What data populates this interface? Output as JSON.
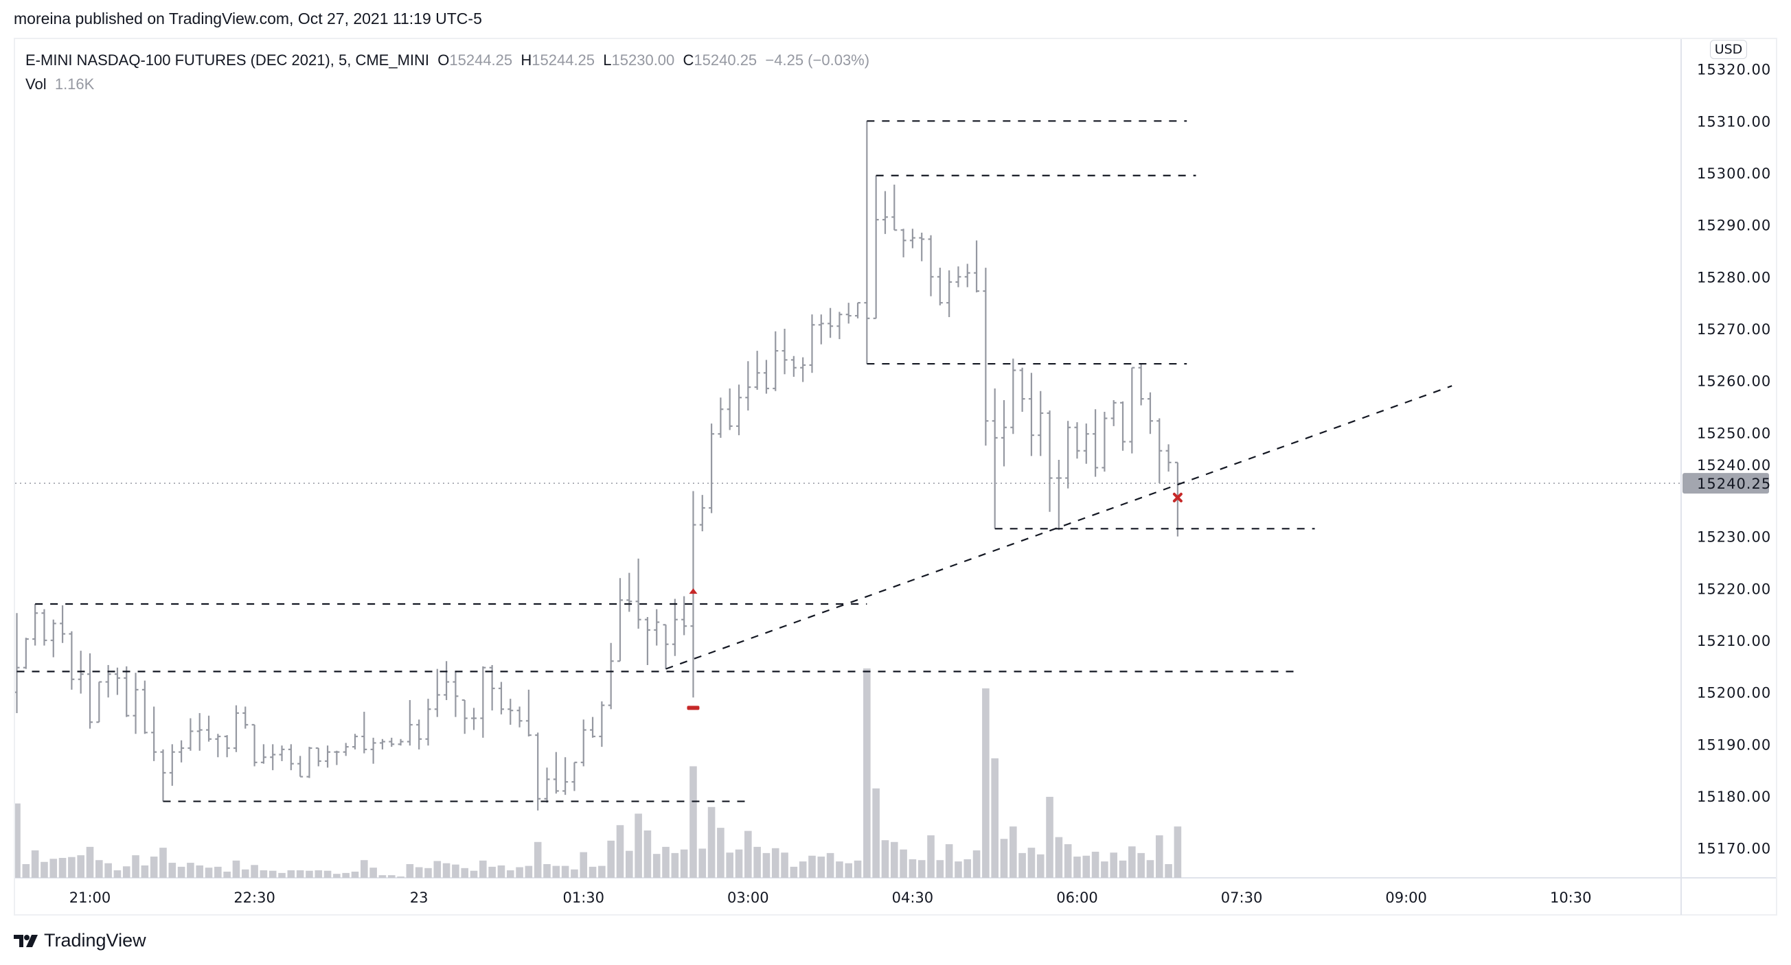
{
  "header": {
    "published": "moreina published on TradingView.com, Oct 27, 2021 11:19 UTC-5"
  },
  "legend": {
    "symbol": "E-MINI NASDAQ-100 FUTURES (DEC 2021), 5, CME_MINI",
    "o_label": "O",
    "o_value": "15244.25",
    "h_label": "H",
    "h_value": "15244.25",
    "l_label": "L",
    "l_value": "15230.00",
    "c_label": "C",
    "c_value": "15240.25",
    "change": "−4.25 (−0.03%)",
    "vol_label": "Vol",
    "vol_value": "1.16K"
  },
  "currency_badge": "USD",
  "current_price_label": "15240.25",
  "footer": {
    "logo_text": "TradingView"
  },
  "colors": {
    "bar": "#9598a1",
    "volume": "#c9cad0",
    "drawing": "#131722",
    "marker": "#c62828",
    "price_tag": "#a3a6af"
  },
  "chart_data": {
    "type": "ohlc",
    "interval_minutes": 5,
    "first_bar_time": "20:20",
    "ylim": [
      15164,
      15326
    ],
    "y_ticks": [
      "15320.00",
      "15310.00",
      "15300.00",
      "15290.00",
      "15280.00",
      "15270.00",
      "15260.00",
      "15250.00",
      "15240.00",
      "15230.00",
      "15220.00",
      "15210.00",
      "15200.00",
      "15190.00",
      "15180.00",
      "15170.00"
    ],
    "x_ticks": [
      {
        "label": "21:00",
        "time": "21:00"
      },
      {
        "label": "22:30",
        "time": "22:30"
      },
      {
        "label": "23",
        "time": "00:00"
      },
      {
        "label": "01:30",
        "time": "01:30"
      },
      {
        "label": "03:00",
        "time": "03:00"
      },
      {
        "label": "04:30",
        "time": "04:30"
      },
      {
        "label": "06:00",
        "time": "06:00"
      },
      {
        "label": "07:30",
        "time": "07:30"
      },
      {
        "label": "09:00",
        "time": "09:00"
      },
      {
        "label": "10:30",
        "time": "10:30"
      }
    ],
    "x_end_time": "11:40",
    "last_price": 15240.25,
    "ohlc": [
      [
        15200,
        15215.25,
        15196,
        15204.75
      ],
      [
        15204.75,
        15210.5,
        15204.5,
        15210.25
      ],
      [
        15210.25,
        15217,
        15209,
        15215.25
      ],
      [
        15215.25,
        15216,
        15209,
        15210
      ],
      [
        15210,
        15214,
        15206.75,
        15213.25
      ],
      [
        15213.25,
        15216.75,
        15209.5,
        15211.25
      ],
      [
        15211.25,
        15211.75,
        15200.5,
        15202.5
      ],
      [
        15202.5,
        15208,
        15199.75,
        15203.5
      ],
      [
        15203.5,
        15207.5,
        15193,
        15194.25
      ],
      [
        15194.25,
        15202,
        15194.25,
        15202
      ],
      [
        15202,
        15205.25,
        15199,
        15203.5
      ],
      [
        15203.5,
        15204.75,
        15199.5,
        15202.75
      ],
      [
        15202.75,
        15205,
        15195.25,
        15195.5
      ],
      [
        15195.5,
        15203.75,
        15192,
        15200.5
      ],
      [
        15200.5,
        15202.25,
        15192,
        15192.25
      ],
      [
        15192.25,
        15197.25,
        15186.75,
        15188.5
      ],
      [
        15188.5,
        15189,
        15179,
        15184.5
      ],
      [
        15184.5,
        15190,
        15182,
        15188.5
      ],
      [
        15188.5,
        15190.75,
        15186.5,
        15189.25
      ],
      [
        15189.25,
        15195,
        15188.75,
        15192.5
      ],
      [
        15192.5,
        15196,
        15188.75,
        15192.75
      ],
      [
        15192.75,
        15195.5,
        15190.5,
        15191
      ],
      [
        15191,
        15192,
        15187.5,
        15191.5
      ],
      [
        15191.5,
        15191.75,
        15187.5,
        15189.25
      ],
      [
        15189.25,
        15197.5,
        15188.5,
        15196
      ],
      [
        15196,
        15197.25,
        15193,
        15193.75
      ],
      [
        15193.75,
        15193.75,
        15185.75,
        15186.5
      ],
      [
        15186.5,
        15190,
        15186.25,
        15187.5
      ],
      [
        15187.5,
        15190,
        15185,
        15188
      ],
      [
        15188,
        15189.75,
        15186.75,
        15189
      ],
      [
        15189,
        15190,
        15185,
        15186.25
      ],
      [
        15186.25,
        15187.75,
        15183.75,
        15183.75
      ],
      [
        15183.75,
        15189.5,
        15183.5,
        15189.25
      ],
      [
        15189.25,
        15189.25,
        15185.75,
        15186.75
      ],
      [
        15186.75,
        15189.75,
        15185.5,
        15188.5
      ],
      [
        15188.5,
        15188.75,
        15186,
        15188.5
      ],
      [
        15188.5,
        15190.25,
        15187.75,
        15189.5
      ],
      [
        15189.5,
        15192,
        15189,
        15191.5
      ],
      [
        15191.5,
        15196.25,
        15188.25,
        15189
      ],
      [
        15189,
        15191.25,
        15186.25,
        15190.25
      ],
      [
        15190.25,
        15191,
        15189,
        15190.5
      ],
      [
        15190.5,
        15191.25,
        15189.5,
        15190
      ],
      [
        15190,
        15191,
        15189.75,
        15190.5
      ],
      [
        15190.5,
        15198.5,
        15189.75,
        15193.75
      ],
      [
        15193.75,
        15194.75,
        15189,
        15191
      ],
      [
        15191,
        15198.75,
        15189.75,
        15196.75
      ],
      [
        15196.75,
        15204.5,
        15195.25,
        15199.5
      ],
      [
        15199.5,
        15206,
        15198.5,
        15202
      ],
      [
        15202,
        15204,
        15195.25,
        15199.25
      ],
      [
        15198.5,
        15198.5,
        15192,
        15195
      ],
      [
        15195,
        15197,
        15192.75,
        15195
      ],
      [
        15195,
        15205,
        15191.25,
        15204.75
      ],
      [
        15204.75,
        15205.25,
        15196.5,
        15200.75
      ],
      [
        15200.75,
        15202,
        15195.75,
        15196.75
      ],
      [
        15196.75,
        15198.75,
        15193.75,
        15196.5
      ],
      [
        15196.5,
        15197.25,
        15193.25,
        15194.5
      ],
      [
        15194.5,
        15200.5,
        15191.5,
        15191.75
      ],
      [
        15191.75,
        15192.25,
        15177.25,
        15179.5
      ],
      [
        15179.5,
        15185.5,
        15178.75,
        15183.25
      ],
      [
        15183.25,
        15188.5,
        15180.5,
        15181
      ],
      [
        15181,
        15187.5,
        15180.25,
        15182.75
      ],
      [
        15182.75,
        15186.5,
        15181,
        15186.5
      ],
      [
        15186.5,
        15194.75,
        15185.75,
        15192.75
      ],
      [
        15192.75,
        15195.25,
        15191.25,
        15191.5
      ],
      [
        15191.5,
        15198.25,
        15189.5,
        15197.5
      ],
      [
        15197.5,
        15209.5,
        15196.75,
        15206
      ],
      [
        15206,
        15222,
        15206,
        15217.75
      ],
      [
        15217.75,
        15223,
        15215.5,
        15217.5
      ],
      [
        15217.5,
        15225.75,
        15212.25,
        15214
      ],
      [
        15214,
        15214.5,
        15205.25,
        15212
      ],
      [
        15212,
        15216,
        15209,
        15213.5
      ],
      [
        15213,
        15213,
        15204.5,
        15209.25
      ],
      [
        15209.25,
        15218,
        15207,
        15214
      ],
      [
        15214,
        15218.5,
        15211,
        15212.75
      ],
      [
        15212.75,
        15238.75,
        15199,
        15232.25
      ],
      [
        15232.25,
        15238,
        15231,
        15235.5
      ],
      [
        15235.5,
        15251.75,
        15234.5,
        15249.75
      ],
      [
        15249.75,
        15256.75,
        15249,
        15254.5
      ],
      [
        15254.5,
        15258.5,
        15250.5,
        15251.25
      ],
      [
        15251.25,
        15259.25,
        15249.5,
        15256.75
      ],
      [
        15256.75,
        15263.75,
        15254.25,
        15258.75
      ],
      [
        15258.75,
        15265.75,
        15258.25,
        15261.5
      ],
      [
        15261.5,
        15264,
        15257.5,
        15258.5
      ],
      [
        15258.5,
        15269.5,
        15258,
        15265.75
      ],
      [
        15265.75,
        15270,
        15261.25,
        15264
      ],
      [
        15264,
        15264.75,
        15260.75,
        15262.5
      ],
      [
        15262.5,
        15264.5,
        15259.75,
        15263
      ],
      [
        15263,
        15272.75,
        15261.5,
        15270.75
      ],
      [
        15270.75,
        15272.75,
        15267,
        15271
      ],
      [
        15271,
        15274,
        15268.25,
        15270.5
      ],
      [
        15270.5,
        15273.25,
        15268,
        15272.75
      ],
      [
        15272.75,
        15275,
        15271,
        15272.5
      ],
      [
        15272.5,
        15275,
        15272,
        15275
      ],
      [
        15275,
        15310,
        15263.25,
        15272
      ],
      [
        15272,
        15299.5,
        15272,
        15291
      ],
      [
        15291,
        15296.5,
        15288.25,
        15291.5
      ],
      [
        15291.5,
        15297.75,
        15289,
        15289
      ],
      [
        15289,
        15289.25,
        15283.75,
        15287
      ],
      [
        15287,
        15289.25,
        15285.5,
        15287.5
      ],
      [
        15287.5,
        15288.5,
        15283,
        15287.25
      ],
      [
        15287.25,
        15288,
        15276.25,
        15280
      ],
      [
        15280,
        15281.75,
        15274.5,
        15275
      ],
      [
        15275,
        15281.25,
        15272.25,
        15279
      ],
      [
        15279,
        15282,
        15278,
        15280
      ],
      [
        15280,
        15282.5,
        15278,
        15280.75
      ],
      [
        15280.75,
        15287,
        15277,
        15277.25
      ],
      [
        15277.25,
        15281.75,
        15247.5,
        15252.25
      ],
      [
        15252.25,
        15258.5,
        15231.5,
        15249
      ],
      [
        15249,
        15256.25,
        15243.5,
        15251
      ],
      [
        15251,
        15264.25,
        15249.75,
        15262
      ],
      [
        15262,
        15262.5,
        15254,
        15256.5
      ],
      [
        15256.5,
        15261.5,
        15245.5,
        15249.5
      ],
      [
        15249.5,
        15258,
        15245.5,
        15253.75
      ],
      [
        15253.75,
        15254.25,
        15234.75,
        15241.25
      ],
      [
        15241.25,
        15244.75,
        15231.25,
        15241.25
      ],
      [
        15241.25,
        15252.25,
        15239.25,
        15251
      ],
      [
        15251,
        15252,
        15245,
        15246.5
      ],
      [
        15246.5,
        15251.75,
        15244,
        15249.75
      ],
      [
        15249.75,
        15254.5,
        15241.5,
        15243.25
      ],
      [
        15243.25,
        15254,
        15242.5,
        15252.75
      ],
      [
        15252.75,
        15256.25,
        15251.25,
        15255.75
      ],
      [
        15255.75,
        15256,
        15246.5,
        15248.25
      ],
      [
        15248.25,
        15262.5,
        15246,
        15262.5
      ],
      [
        15262.5,
        15263.25,
        15255.25,
        15256.5
      ],
      [
        15256.5,
        15257.75,
        15249.75,
        15252.25
      ],
      [
        15252.25,
        15252.75,
        15240.25,
        15246.5
      ],
      [
        15246.5,
        15247.75,
        15242.5,
        15244.25
      ],
      [
        15244.25,
        15244.25,
        15230,
        15240.25
      ]
    ],
    "volume_k": [
      1.68,
      0.31,
      0.62,
      0.36,
      0.43,
      0.45,
      0.47,
      0.51,
      0.7,
      0.4,
      0.33,
      0.17,
      0.26,
      0.51,
      0.28,
      0.48,
      0.68,
      0.34,
      0.25,
      0.34,
      0.28,
      0.23,
      0.25,
      0.14,
      0.39,
      0.19,
      0.29,
      0.17,
      0.16,
      0.11,
      0.17,
      0.17,
      0.16,
      0.17,
      0.16,
      0.09,
      0.11,
      0.14,
      0.4,
      0.23,
      0.06,
      0.06,
      0.03,
      0.31,
      0.24,
      0.22,
      0.38,
      0.33,
      0.3,
      0.22,
      0.16,
      0.39,
      0.25,
      0.28,
      0.17,
      0.24,
      0.27,
      0.81,
      0.31,
      0.27,
      0.27,
      0.19,
      0.58,
      0.25,
      0.27,
      0.84,
      1.19,
      0.61,
      1.45,
      1.07,
      0.54,
      0.7,
      0.56,
      0.64,
      2.52,
      0.66,
      1.6,
      1.13,
      0.57,
      0.64,
      1.06,
      0.7,
      0.56,
      0.67,
      0.57,
      0.25,
      0.37,
      0.5,
      0.48,
      0.56,
      0.37,
      0.33,
      0.39,
      4.73,
      2.02,
      0.85,
      0.81,
      0.64,
      0.42,
      0.4,
      0.96,
      0.4,
      0.76,
      0.37,
      0.42,
      0.62,
      4.28,
      2.7,
      0.88,
      1.16,
      0.56,
      0.68,
      0.53,
      1.83,
      0.92,
      0.76,
      0.48,
      0.5,
      0.59,
      0.37,
      0.57,
      0.39,
      0.71,
      0.56,
      0.4,
      0.96,
      0.31,
      1.16
    ],
    "drawings": {
      "horizontal_levels": [
        {
          "price": 15310,
          "from": "04:05",
          "to": "07:00"
        },
        {
          "price": 15299.5,
          "from": "04:10",
          "to": "07:05"
        },
        {
          "price": 15263.25,
          "from": "04:05",
          "to": "07:00"
        },
        {
          "price": 15231.5,
          "from": "05:15",
          "to": "08:10"
        },
        {
          "price": 15217,
          "from": "20:30",
          "to": "04:05"
        },
        {
          "price": 15204,
          "from": "20:20",
          "to": "08:00"
        },
        {
          "price": 15179,
          "from": "21:40",
          "to": "03:00"
        }
      ],
      "trend_line": {
        "from": {
          "time": "02:15",
          "price": 15204.5
        },
        "to": {
          "time": "09:25",
          "price": 15259
        }
      },
      "markers": [
        {
          "type": "arrow-up",
          "time": "02:30",
          "price": 15219.5
        },
        {
          "type": "dash",
          "time": "02:30",
          "price": 15197
        },
        {
          "type": "cross",
          "time": "06:55",
          "price": 15237.5
        }
      ]
    }
  }
}
